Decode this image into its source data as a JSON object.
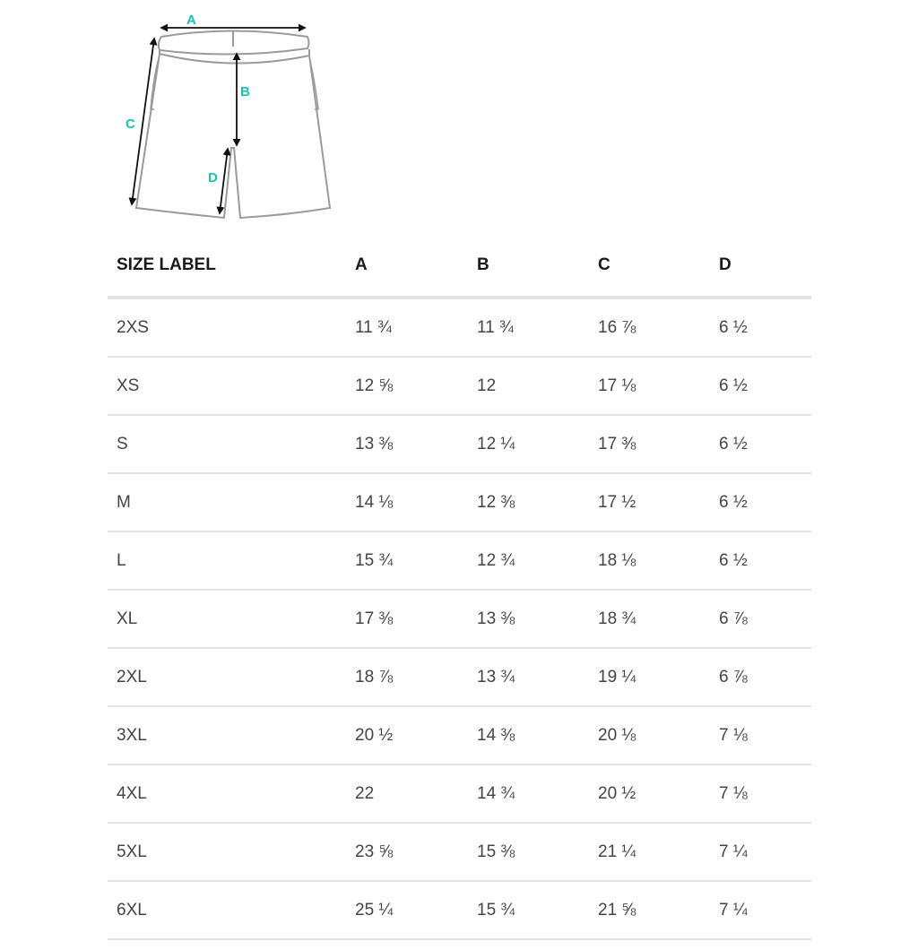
{
  "diagram": {
    "labels": {
      "a": "A",
      "b": "B",
      "c": "C",
      "d": "D"
    },
    "accent_color": "#19c1b0"
  },
  "table": {
    "headers": [
      "SIZE LABEL",
      "A",
      "B",
      "C",
      "D"
    ],
    "rows": [
      [
        "2XS",
        "11 ¾",
        "11 ¾",
        "16 ⅞",
        "6 ½"
      ],
      [
        "XS",
        "12 ⅝",
        "12",
        "17 ⅛",
        "6 ½"
      ],
      [
        "S",
        "13 ⅜",
        "12 ¼",
        "17 ⅜",
        "6 ½"
      ],
      [
        "M",
        "14 ⅛",
        "12 ⅜",
        "17 ½",
        "6 ½"
      ],
      [
        "L",
        "15 ¾",
        "12 ¾",
        "18 ⅛",
        "6 ½"
      ],
      [
        "XL",
        "17 ⅜",
        "13 ⅜",
        "18 ¾",
        "6 ⅞"
      ],
      [
        "2XL",
        "18 ⅞",
        "13 ¾",
        "19 ¼",
        "6 ⅞"
      ],
      [
        "3XL",
        "20 ½",
        "14 ⅜",
        "20 ⅛",
        "7 ⅛"
      ],
      [
        "4XL",
        "22",
        "14 ¾",
        "20 ½",
        "7 ⅛"
      ],
      [
        "5XL",
        "23 ⅝",
        "15 ⅜",
        "21 ¼",
        "7 ¼"
      ],
      [
        "6XL",
        "25 ¼",
        "15 ¾",
        "21 ⅝",
        "7 ¼"
      ]
    ]
  }
}
